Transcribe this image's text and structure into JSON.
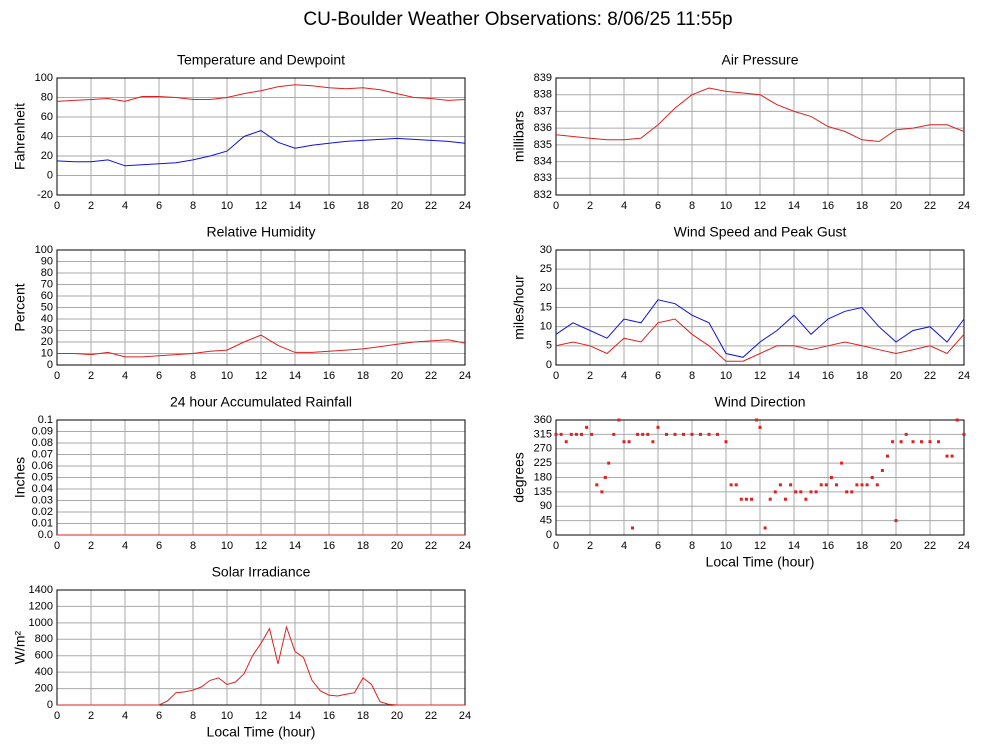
{
  "title": "CU-Boulder Weather Observations: 8/06/25 11:55p",
  "chart_data": [
    {
      "type": "line",
      "title": "Temperature and Dewpoint",
      "ylabel": "Fahrenheit",
      "x": [
        0,
        1,
        2,
        3,
        4,
        5,
        6,
        7,
        8,
        9,
        10,
        11,
        12,
        13,
        14,
        15,
        16,
        17,
        18,
        19,
        20,
        21,
        22,
        23,
        24
      ],
      "series": [
        {
          "color": "#e02020",
          "values": [
            76,
            77,
            78,
            79,
            76,
            81,
            81,
            80,
            78,
            78,
            80,
            84,
            87,
            91,
            93,
            92,
            90,
            89,
            90,
            88,
            84,
            80,
            79,
            77,
            78
          ]
        },
        {
          "color": "#1010e0",
          "values": [
            15,
            14,
            14,
            16,
            10,
            11,
            12,
            13,
            16,
            20,
            25,
            40,
            46,
            34,
            28,
            31,
            33,
            35,
            36,
            37,
            38,
            37,
            36,
            35,
            33
          ]
        }
      ],
      "xlim": [
        0,
        24
      ],
      "xticks": [
        0,
        2,
        4,
        6,
        8,
        10,
        12,
        14,
        16,
        18,
        20,
        22,
        24
      ],
      "ylim": [
        -20,
        100
      ],
      "yticks": [
        -20,
        0,
        20,
        40,
        60,
        80,
        100
      ],
      "grid": true
    },
    {
      "type": "line",
      "title": "Air Pressure",
      "ylabel": "millibars",
      "x": [
        0,
        1,
        2,
        3,
        4,
        5,
        6,
        7,
        8,
        9,
        10,
        11,
        12,
        13,
        14,
        15,
        16,
        17,
        18,
        19,
        20,
        21,
        22,
        23,
        24
      ],
      "series": [
        {
          "color": "#e02020",
          "values": [
            835.6,
            835.5,
            835.4,
            835.3,
            835.3,
            835.4,
            836.2,
            837.2,
            838.0,
            838.4,
            838.2,
            838.1,
            838.0,
            837.4,
            837.0,
            836.7,
            836.1,
            835.8,
            835.3,
            835.2,
            835.9,
            836.0,
            836.2,
            836.2,
            835.8
          ]
        }
      ],
      "xlim": [
        0,
        24
      ],
      "xticks": [
        0,
        2,
        4,
        6,
        8,
        10,
        12,
        14,
        16,
        18,
        20,
        22,
        24
      ],
      "ylim": [
        832,
        839
      ],
      "yticks": [
        832,
        833,
        834,
        835,
        836,
        837,
        838,
        839
      ],
      "grid": true
    },
    {
      "type": "line",
      "title": "Relative Humidity",
      "ylabel": "Percent",
      "x": [
        0,
        1,
        2,
        3,
        4,
        5,
        6,
        7,
        8,
        9,
        10,
        11,
        12,
        13,
        14,
        15,
        16,
        17,
        18,
        19,
        20,
        21,
        22,
        23,
        24
      ],
      "series": [
        {
          "color": "#e02020",
          "values": [
            10,
            10,
            9,
            11,
            7,
            7,
            8,
            9,
            10,
            12,
            13,
            20,
            26,
            17,
            11,
            11,
            12,
            13,
            14,
            16,
            18,
            20,
            21,
            22,
            19
          ]
        }
      ],
      "xlim": [
        0,
        24
      ],
      "xticks": [
        0,
        2,
        4,
        6,
        8,
        10,
        12,
        14,
        16,
        18,
        20,
        22,
        24
      ],
      "ylim": [
        0,
        100
      ],
      "yticks": [
        0,
        10,
        20,
        30,
        40,
        50,
        60,
        70,
        80,
        90,
        100
      ],
      "grid": true
    },
    {
      "type": "line",
      "title": "Wind Speed and Peak Gust",
      "ylabel": "miles/hour",
      "x": [
        0,
        1,
        2,
        3,
        4,
        5,
        6,
        7,
        8,
        9,
        10,
        11,
        12,
        13,
        14,
        15,
        16,
        17,
        18,
        19,
        20,
        21,
        22,
        23,
        24
      ],
      "series": [
        {
          "color": "#1010e0",
          "values": [
            8,
            11,
            9,
            7,
            12,
            11,
            17,
            16,
            13,
            11,
            3,
            2,
            6,
            9,
            13,
            8,
            12,
            14,
            15,
            10,
            6,
            9,
            10,
            6,
            12
          ]
        },
        {
          "color": "#e02020",
          "values": [
            5,
            6,
            5,
            3,
            7,
            6,
            11,
            12,
            8,
            5,
            1,
            1,
            3,
            5,
            5,
            4,
            5,
            6,
            5,
            4,
            3,
            4,
            5,
            3,
            8
          ]
        }
      ],
      "xlim": [
        0,
        24
      ],
      "xticks": [
        0,
        2,
        4,
        6,
        8,
        10,
        12,
        14,
        16,
        18,
        20,
        22,
        24
      ],
      "ylim": [
        0,
        30
      ],
      "yticks": [
        0,
        5,
        10,
        15,
        20,
        25,
        30
      ],
      "grid": true
    },
    {
      "type": "line",
      "title": "24 hour Accumulated Rainfall",
      "ylabel": "Inches",
      "x": [
        0,
        24
      ],
      "series": [
        {
          "color": "#e02020",
          "values": [
            0,
            0
          ]
        }
      ],
      "xlim": [
        0,
        24
      ],
      "xticks": [
        0,
        2,
        4,
        6,
        8,
        10,
        12,
        14,
        16,
        18,
        20,
        22,
        24
      ],
      "ylim": [
        0,
        0.1
      ],
      "yticks": [
        {
          "value": 0,
          "label": "0.0"
        },
        0.01,
        0.02,
        0.03,
        0.04,
        0.05,
        0.06,
        0.07,
        0.08,
        0.09,
        0.1
      ],
      "grid": true
    },
    {
      "type": "scatter",
      "title": "Wind Direction",
      "ylabel": "degrees",
      "xlabel": "Local Time (hour)",
      "x": [
        0,
        0.3,
        0.6,
        0.9,
        1.2,
        1.5,
        1.8,
        2.1,
        2.4,
        2.7,
        2.9,
        3.1,
        3.4,
        3.7,
        4,
        4.3,
        4.5,
        4.8,
        5.1,
        5.4,
        5.7,
        6,
        6.5,
        7,
        7.5,
        8,
        8.5,
        9,
        9.5,
        10,
        10.3,
        10.6,
        10.9,
        11.2,
        11.5,
        11.8,
        12,
        12.3,
        12.6,
        12.9,
        13.2,
        13.5,
        13.8,
        14.1,
        14.4,
        14.7,
        15,
        15.3,
        15.6,
        15.9,
        16.2,
        16.5,
        16.8,
        17.1,
        17.4,
        17.7,
        18,
        18.3,
        18.6,
        18.9,
        19.2,
        19.5,
        19.8,
        20,
        20.3,
        20.6,
        21,
        21.5,
        22,
        22.5,
        23,
        23.3,
        23.6,
        24
      ],
      "series": [
        {
          "color": "#e02020",
          "values": [
            315,
            315,
            292,
            315,
            315,
            315,
            337,
            315,
            157,
            135,
            180,
            225,
            315,
            360,
            292,
            292,
            22,
            315,
            315,
            315,
            292,
            337,
            315,
            315,
            315,
            315,
            315,
            315,
            315,
            292,
            157,
            157,
            112,
            112,
            112,
            360,
            337,
            22,
            112,
            135,
            157,
            112,
            157,
            135,
            135,
            112,
            135,
            135,
            157,
            157,
            180,
            157,
            225,
            135,
            135,
            157,
            157,
            157,
            180,
            157,
            202,
            247,
            292,
            45,
            292,
            315,
            292,
            292,
            292,
            292,
            247,
            247,
            360,
            315
          ]
        }
      ],
      "xlim": [
        0,
        24
      ],
      "xticks": [
        0,
        2,
        4,
        6,
        8,
        10,
        12,
        14,
        16,
        18,
        20,
        22,
        24
      ],
      "ylim": [
        0,
        360
      ],
      "yticks": [
        0,
        45,
        90,
        135,
        180,
        225,
        270,
        315,
        360
      ],
      "grid": true
    },
    {
      "type": "line",
      "title": "Solar Irradiance",
      "ylabel": "W/m²",
      "xlabel": "Local Time (hour)",
      "x": [
        0,
        0.5,
        1,
        1.5,
        2,
        2.5,
        3,
        3.5,
        4,
        4.5,
        5,
        5.5,
        6,
        6.5,
        7,
        7.5,
        8,
        8.5,
        9,
        9.5,
        10,
        10.5,
        11,
        11.5,
        12,
        12.5,
        13,
        13.5,
        14,
        14.5,
        15,
        15.5,
        16,
        16.5,
        17,
        17.5,
        18,
        18.5,
        19,
        19.5,
        20,
        20.5,
        21,
        21.5,
        22,
        22.5,
        23,
        23.5,
        24
      ],
      "series": [
        {
          "color": "#e02020",
          "values": [
            0,
            0,
            0,
            0,
            0,
            0,
            0,
            0,
            0,
            0,
            0,
            0,
            0,
            50,
            150,
            160,
            180,
            220,
            300,
            330,
            250,
            280,
            380,
            600,
            750,
            930,
            500,
            950,
            650,
            580,
            300,
            170,
            120,
            110,
            130,
            150,
            330,
            250,
            40,
            10,
            0,
            0,
            0,
            0,
            0,
            0,
            0,
            0,
            0
          ]
        }
      ],
      "xlim": [
        0,
        24
      ],
      "xticks": [
        0,
        2,
        4,
        6,
        8,
        10,
        12,
        14,
        16,
        18,
        20,
        22,
        24
      ],
      "ylim": [
        0,
        1400
      ],
      "yticks": [
        0,
        200,
        400,
        600,
        800,
        1000,
        1200,
        1400
      ],
      "grid": true
    }
  ]
}
